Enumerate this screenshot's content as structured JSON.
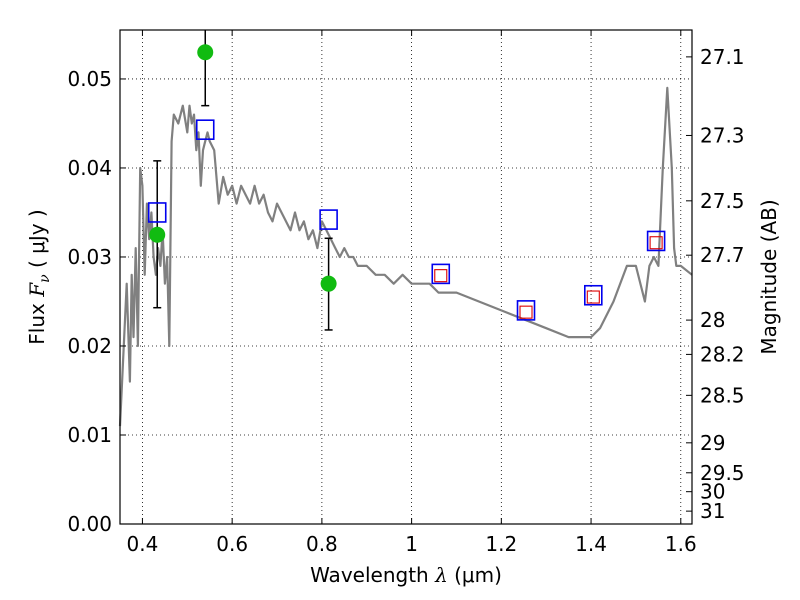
{
  "chart_data": {
    "type": "line",
    "xlabel": {
      "prefix": "Wavelength  ",
      "symbol": "λ",
      "unit": " (μm)"
    },
    "ylabel": {
      "prefix": "Flux  ",
      "symbol": "F",
      "sub": "ν",
      "unit": "  ( μJy )"
    },
    "y2label": "Magnitude (AB)",
    "xlim": [
      0.35,
      1.625
    ],
    "ylim": [
      0.0,
      0.0555
    ],
    "x_ticks": [
      0.4,
      0.6,
      0.8,
      1.0,
      1.2,
      1.4,
      1.6
    ],
    "x_tick_labels": [
      "0.4",
      "0.6",
      "0.8",
      "1",
      "1.2",
      "1.4",
      "1.6"
    ],
    "y_ticks": [
      0.0,
      0.01,
      0.02,
      0.03,
      0.04,
      0.05
    ],
    "y_tick_labels": [
      "0.00",
      "0.01",
      "0.02",
      "0.03",
      "0.04",
      "0.05"
    ],
    "y2_ticks": [
      27.1,
      27.3,
      27.5,
      27.7,
      28,
      28.2,
      28.5,
      29,
      29.5,
      30,
      31
    ],
    "y2_tick_labels": [
      "27.1",
      "27.3",
      "27.5",
      "27.7",
      "28",
      "28.2",
      "28.5",
      "29",
      "29.5",
      "30",
      "31"
    ],
    "grid": true,
    "colors": {
      "model": "#808080",
      "observed": "#11bb11",
      "synthetic": "#0000ee",
      "synthetic_inner": "#dd0000",
      "errorbar": "#000000"
    },
    "series": [
      {
        "kind": "line",
        "x": [
          0.35,
          0.365,
          0.372,
          0.376,
          0.38,
          0.385,
          0.39,
          0.395,
          0.4,
          0.405,
          0.41,
          0.415,
          0.42,
          0.425,
          0.43,
          0.435,
          0.44,
          0.445,
          0.45,
          0.455,
          0.46,
          0.465,
          0.47,
          0.48,
          0.49,
          0.5,
          0.505,
          0.51,
          0.515,
          0.52,
          0.525,
          0.53,
          0.535,
          0.54,
          0.545,
          0.55,
          0.56,
          0.57,
          0.58,
          0.59,
          0.6,
          0.61,
          0.62,
          0.63,
          0.64,
          0.65,
          0.66,
          0.67,
          0.68,
          0.69,
          0.7,
          0.71,
          0.72,
          0.73,
          0.74,
          0.75,
          0.76,
          0.77,
          0.78,
          0.79,
          0.8,
          0.81,
          0.82,
          0.83,
          0.84,
          0.85,
          0.86,
          0.87,
          0.88,
          0.9,
          0.92,
          0.94,
          0.96,
          0.98,
          1.0,
          1.02,
          1.04,
          1.06,
          1.08,
          1.1,
          1.15,
          1.2,
          1.25,
          1.3,
          1.35,
          1.38,
          1.4,
          1.42,
          1.45,
          1.48,
          1.5,
          1.52,
          1.53,
          1.54,
          1.55,
          1.56,
          1.57,
          1.58,
          1.585,
          1.59,
          1.6,
          1.625
        ],
        "y": [
          0.011,
          0.027,
          0.016,
          0.028,
          0.021,
          0.031,
          0.02,
          0.04,
          0.038,
          0.028,
          0.036,
          0.032,
          0.035,
          0.03,
          0.028,
          0.031,
          0.029,
          0.033,
          0.027,
          0.03,
          0.02,
          0.043,
          0.046,
          0.045,
          0.047,
          0.044,
          0.047,
          0.045,
          0.046,
          0.042,
          0.044,
          0.038,
          0.042,
          0.043,
          0.044,
          0.043,
          0.042,
          0.036,
          0.039,
          0.037,
          0.038,
          0.036,
          0.038,
          0.037,
          0.036,
          0.038,
          0.036,
          0.037,
          0.035,
          0.034,
          0.036,
          0.035,
          0.034,
          0.033,
          0.035,
          0.033,
          0.034,
          0.032,
          0.033,
          0.031,
          0.034,
          0.033,
          0.032,
          0.031,
          0.03,
          0.031,
          0.03,
          0.03,
          0.029,
          0.029,
          0.028,
          0.028,
          0.027,
          0.028,
          0.027,
          0.027,
          0.027,
          0.026,
          0.026,
          0.026,
          0.025,
          0.024,
          0.023,
          0.022,
          0.021,
          0.021,
          0.021,
          0.022,
          0.025,
          0.029,
          0.029,
          0.025,
          0.029,
          0.03,
          0.029,
          0.04,
          0.049,
          0.04,
          0.031,
          0.029,
          0.029,
          0.028
        ]
      },
      {
        "kind": "errorbar",
        "points": [
          {
            "x": 0.433,
            "y": 0.0325,
            "lo": 0.0243,
            "hi": 0.0408
          },
          {
            "x": 0.54,
            "y": 0.053,
            "lo": 0.047,
            "hi": 0.0555
          },
          {
            "x": 0.815,
            "y": 0.027,
            "lo": 0.0218,
            "hi": 0.0321
          }
        ]
      },
      {
        "kind": "squares",
        "x": [
          0.433,
          0.54,
          0.815,
          1.065,
          1.255,
          1.405,
          1.545
        ],
        "y": [
          0.035,
          0.0443,
          0.0342,
          0.0281,
          0.024,
          0.0257,
          0.0318
        ]
      },
      {
        "kind": "inner_squares",
        "x": [
          1.065,
          1.255,
          1.405,
          1.545
        ],
        "y": [
          0.0279,
          0.0238,
          0.0255,
          0.0316
        ]
      }
    ]
  }
}
